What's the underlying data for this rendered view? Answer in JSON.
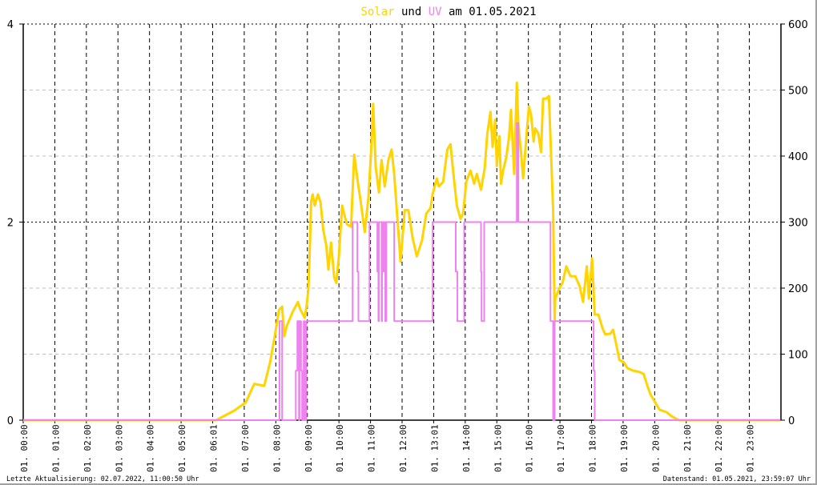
{
  "title": {
    "part1": "Solar",
    "part2": " und ",
    "part3": "UV",
    "part4": " am 01.05.2021"
  },
  "footer": {
    "left": "Letzte Aktualisierung: 02.07.2022, 11:00:50 Uhr",
    "right": "Datenstand: 01.05.2021, 23:59:07 Uhr"
  },
  "colors": {
    "solar": "#FFD400",
    "uv": "#EE82EE",
    "grid": "#000000",
    "grid_minor": "#c0c0c0"
  },
  "chart_data": {
    "type": "line",
    "title": "Solar und UV am 01.05.2021",
    "grid": true,
    "x_range": [
      "00:00",
      "24:00"
    ],
    "x_tick_labels": [
      "01. 00:00",
      "01. 01:00",
      "01. 02:00",
      "01. 03:00",
      "01. 04:00",
      "01. 05:00",
      "01. 06:01",
      "01. 07:00",
      "01. 08:00",
      "01. 09:00",
      "01. 10:00",
      "01. 11:00",
      "01. 12:00",
      "01. 13:01",
      "01. 14:00",
      "01. 15:00",
      "01. 16:00",
      "01. 17:00",
      "01. 18:00",
      "01. 19:00",
      "01. 20:00",
      "01. 21:00",
      "01. 22:00",
      "01. 23:00"
    ],
    "y_left": {
      "range": [
        0,
        4
      ],
      "ticks": [
        "0",
        "2",
        "4"
      ]
    },
    "y_right": {
      "range": [
        0,
        600
      ],
      "ticks": [
        "0",
        "100",
        "200",
        "300",
        "400",
        "500",
        "600"
      ]
    },
    "series": [
      {
        "name": "Solar",
        "axis": "right",
        "color": "#FFD400",
        "points": [
          [
            "00:00",
            0
          ],
          [
            "06:07",
            0
          ],
          [
            "06:42",
            15
          ],
          [
            "07:03",
            27
          ],
          [
            "07:19",
            55
          ],
          [
            "07:38",
            52
          ],
          [
            "07:49",
            87
          ],
          [
            "07:58",
            127
          ],
          [
            "08:06",
            167
          ],
          [
            "08:12",
            172
          ],
          [
            "08:16",
            127
          ],
          [
            "08:21",
            143
          ],
          [
            "08:32",
            164
          ],
          [
            "08:42",
            179
          ],
          [
            "08:47",
            167
          ],
          [
            "08:55",
            155
          ],
          [
            "08:59",
            176
          ],
          [
            "09:02",
            200
          ],
          [
            "09:05",
            269
          ],
          [
            "09:07",
            330
          ],
          [
            "09:10",
            342
          ],
          [
            "09:14",
            325
          ],
          [
            "09:20",
            342
          ],
          [
            "09:25",
            330
          ],
          [
            "09:30",
            289
          ],
          [
            "09:36",
            264
          ],
          [
            "09:40",
            228
          ],
          [
            "09:45",
            269
          ],
          [
            "09:51",
            216
          ],
          [
            "09:55",
            208
          ],
          [
            "10:00",
            250
          ],
          [
            "10:06",
            325
          ],
          [
            "10:11",
            309
          ],
          [
            "10:15",
            297
          ],
          [
            "10:23",
            293
          ],
          [
            "10:29",
            402
          ],
          [
            "10:37",
            354
          ],
          [
            "10:41",
            333
          ],
          [
            "10:49",
            285
          ],
          [
            "10:56",
            337
          ],
          [
            "11:01",
            406
          ],
          [
            "11:05",
            479
          ],
          [
            "11:10",
            382
          ],
          [
            "11:16",
            345
          ],
          [
            "11:21",
            394
          ],
          [
            "11:27",
            354
          ],
          [
            "11:34",
            394
          ],
          [
            "11:40",
            410
          ],
          [
            "11:45",
            373
          ],
          [
            "11:50",
            318
          ],
          [
            "11:57",
            240
          ],
          [
            "12:05",
            318
          ],
          [
            "12:12",
            318
          ],
          [
            "12:20",
            276
          ],
          [
            "12:28",
            248
          ],
          [
            "12:38",
            273
          ],
          [
            "12:46",
            313
          ],
          [
            "12:54",
            321
          ],
          [
            "12:58",
            342
          ],
          [
            "13:06",
            366
          ],
          [
            "13:10",
            354
          ],
          [
            "13:18",
            361
          ],
          [
            "13:26",
            410
          ],
          [
            "13:32",
            418
          ],
          [
            "13:36",
            385
          ],
          [
            "13:44",
            325
          ],
          [
            "13:51",
            305
          ],
          [
            "13:56",
            313
          ],
          [
            "14:02",
            361
          ],
          [
            "14:10",
            378
          ],
          [
            "14:17",
            358
          ],
          [
            "14:22",
            373
          ],
          [
            "14:30",
            349
          ],
          [
            "14:37",
            382
          ],
          [
            "14:42",
            434
          ],
          [
            "14:48",
            467
          ],
          [
            "14:52",
            414
          ],
          [
            "14:57",
            455
          ],
          [
            "15:00",
            385
          ],
          [
            "15:05",
            430
          ],
          [
            "15:08",
            358
          ],
          [
            "15:12",
            378
          ],
          [
            "15:18",
            398
          ],
          [
            "15:23",
            427
          ],
          [
            "15:27",
            470
          ],
          [
            "15:33",
            373
          ],
          [
            "15:38",
            511
          ],
          [
            "15:41",
            446
          ],
          [
            "15:46",
            406
          ],
          [
            "15:50",
            366
          ],
          [
            "15:56",
            427
          ],
          [
            "16:01",
            475
          ],
          [
            "16:05",
            463
          ],
          [
            "16:10",
            422
          ],
          [
            "16:13",
            442
          ],
          [
            "16:19",
            434
          ],
          [
            "16:24",
            406
          ],
          [
            "16:28",
            487
          ],
          [
            "16:34",
            487
          ],
          [
            "16:39",
            491
          ],
          [
            "16:42",
            427
          ],
          [
            "16:47",
            318
          ],
          [
            "16:50",
            150
          ],
          [
            "16:51",
            184
          ],
          [
            "16:59",
            200
          ],
          [
            "17:05",
            208
          ],
          [
            "17:12",
            233
          ],
          [
            "17:20",
            218
          ],
          [
            "17:29",
            218
          ],
          [
            "17:37",
            204
          ],
          [
            "17:44",
            179
          ],
          [
            "17:51",
            233
          ],
          [
            "17:55",
            184
          ],
          [
            "18:01",
            245
          ],
          [
            "18:06",
            160
          ],
          [
            "18:13",
            160
          ],
          [
            "18:21",
            139
          ],
          [
            "18:26",
            130
          ],
          [
            "18:36",
            131
          ],
          [
            "18:41",
            137
          ],
          [
            "18:48",
            111
          ],
          [
            "18:53",
            91
          ],
          [
            "19:01",
            88
          ],
          [
            "19:08",
            79
          ],
          [
            "19:19",
            75
          ],
          [
            "19:31",
            73
          ],
          [
            "19:39",
            70
          ],
          [
            "19:45",
            55
          ],
          [
            "19:52",
            39
          ],
          [
            "20:01",
            27
          ],
          [
            "20:09",
            16
          ],
          [
            "20:23",
            12
          ],
          [
            "20:32",
            6
          ],
          [
            "20:46",
            0
          ],
          [
            "23:59",
            0
          ]
        ]
      },
      {
        "name": "UV",
        "axis": "left",
        "color": "#EE82EE",
        "step": true,
        "points": [
          [
            "00:00",
            0
          ],
          [
            "08:07",
            1
          ],
          [
            "08:12",
            0
          ],
          [
            "08:38",
            0.5
          ],
          [
            "08:41",
            1
          ],
          [
            "08:44",
            0
          ],
          [
            "08:45",
            1
          ],
          [
            "08:48",
            0.5
          ],
          [
            "08:50",
            0
          ],
          [
            "08:53",
            1
          ],
          [
            "08:55",
            0
          ],
          [
            "08:58",
            1
          ],
          [
            "10:26",
            2
          ],
          [
            "10:35",
            1.5
          ],
          [
            "10:37",
            1
          ],
          [
            "10:58",
            2
          ],
          [
            "11:13",
            1.5
          ],
          [
            "11:15",
            1
          ],
          [
            "11:16",
            2
          ],
          [
            "11:21",
            1
          ],
          [
            "11:22",
            2
          ],
          [
            "11:25",
            1.5
          ],
          [
            "11:27",
            2
          ],
          [
            "11:28",
            1
          ],
          [
            "11:30",
            2
          ],
          [
            "11:45",
            1
          ],
          [
            "12:58",
            2
          ],
          [
            "13:42",
            1.5
          ],
          [
            "13:45",
            1
          ],
          [
            "13:58",
            2
          ],
          [
            "14:30",
            1.5
          ],
          [
            "14:31",
            1
          ],
          [
            "14:36",
            2
          ],
          [
            "15:38",
            3
          ],
          [
            "15:41",
            2
          ],
          [
            "16:42",
            1
          ],
          [
            "16:47",
            0
          ],
          [
            "16:50",
            1
          ],
          [
            "18:04",
            0.5
          ],
          [
            "18:06",
            0
          ],
          [
            "23:59",
            0
          ]
        ]
      }
    ]
  }
}
